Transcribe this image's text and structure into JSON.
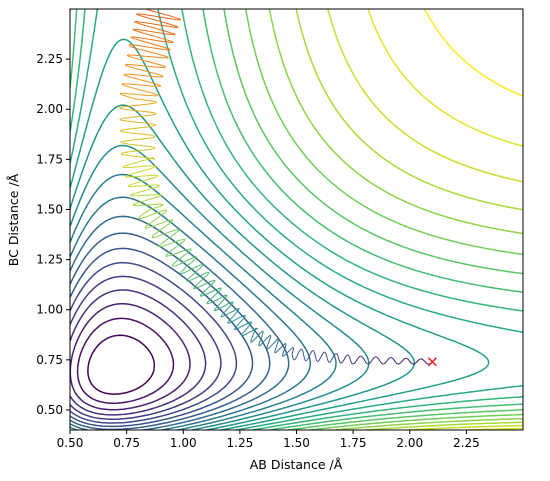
{
  "chart_data": {
    "type": "contour",
    "xlabel": "AB Distance /Å",
    "ylabel": "BC Distance /Å",
    "xlim": [
      0.5,
      2.5
    ],
    "ylim": [
      0.4,
      2.5
    ],
    "xticks": [
      "0.50",
      "0.75",
      "1.00",
      "1.25",
      "1.50",
      "1.75",
      "2.00",
      "2.25"
    ],
    "yticks": [
      "0.50",
      "0.75",
      "1.00",
      "1.25",
      "1.50",
      "1.75",
      "2.00",
      "2.25"
    ],
    "xtick_values": [
      0.5,
      0.75,
      1.0,
      1.25,
      1.5,
      1.75,
      2.0,
      2.25
    ],
    "ytick_values": [
      0.5,
      0.75,
      1.0,
      1.25,
      1.5,
      1.75,
      2.0,
      2.25
    ],
    "grid": false,
    "colormap": "viridis",
    "contour_levels": 24,
    "trajectory": {
      "color_scale": "plasma-like",
      "start_marker": "x",
      "start_point": [
        2.1,
        0.74
      ],
      "start_marker_color": "#e8212b",
      "approach_points": [
        [
          2.1,
          0.74
        ],
        [
          1.75,
          0.75
        ],
        [
          1.48,
          0.78
        ],
        [
          1.3,
          0.88
        ],
        [
          1.15,
          1.05
        ],
        [
          1.0,
          1.25
        ],
        [
          0.85,
          1.5
        ],
        [
          0.8,
          1.75
        ],
        [
          0.8,
          2.05
        ],
        [
          0.85,
          2.3
        ],
        [
          0.9,
          2.5
        ]
      ]
    }
  }
}
